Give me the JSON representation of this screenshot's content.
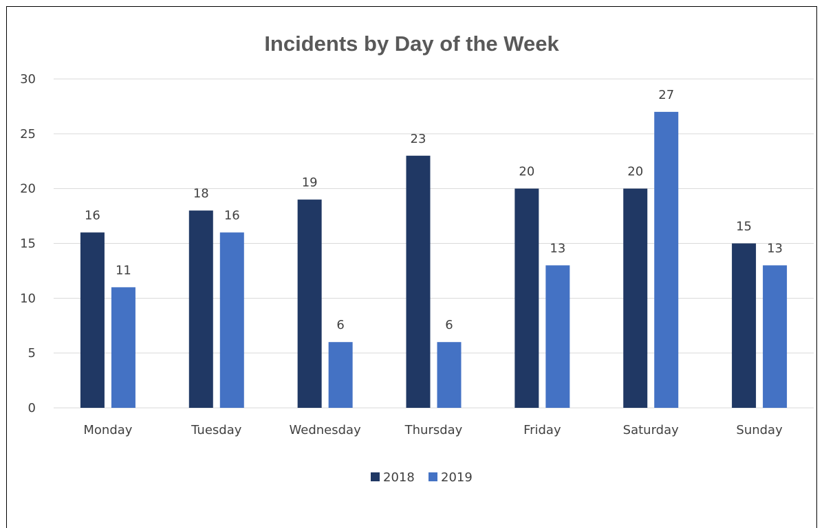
{
  "chart_data": {
    "type": "bar",
    "title": "Incidents by Day of the Week",
    "categories": [
      "Monday",
      "Tuesday",
      "Wednesday",
      "Thursday",
      "Friday",
      "Saturday",
      "Sunday"
    ],
    "series": [
      {
        "name": "2018",
        "values": [
          16,
          18,
          19,
          23,
          20,
          20,
          15
        ],
        "color": "#203864"
      },
      {
        "name": "2019",
        "values": [
          11,
          16,
          6,
          6,
          13,
          27,
          13
        ],
        "color": "#4472C4"
      }
    ],
    "ylim": [
      0,
      30
    ],
    "yticks": [
      "0",
      "5",
      "10",
      "15",
      "20",
      "25",
      "30"
    ],
    "grid": true,
    "legend": "bottom",
    "gridColor": "#D9D9D9"
  }
}
